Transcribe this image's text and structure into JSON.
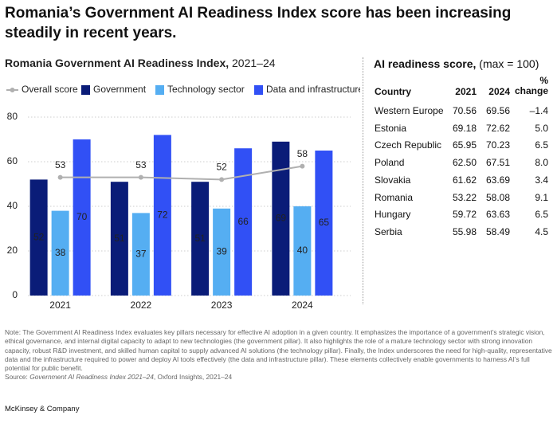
{
  "headline": "Romania’s Government AI Readiness Index score has been increasing steadily in recent years.",
  "chart_data": {
    "type": "bar",
    "title": "Romania Government AI Readiness Index,",
    "subtitle": "2021–24",
    "categories": [
      "2021",
      "2022",
      "2023",
      "2024"
    ],
    "series": [
      {
        "name": "Overall score",
        "type": "line",
        "color": "#b0b0b0",
        "values": [
          53,
          53,
          52,
          58
        ]
      },
      {
        "name": "Government",
        "color": "#0a1c78",
        "values": [
          52,
          51,
          51,
          69
        ]
      },
      {
        "name": "Technology sector",
        "color": "#55aef2",
        "values": [
          38,
          37,
          39,
          40
        ]
      },
      {
        "name": "Data and infrastructure",
        "color": "#3150f5",
        "values": [
          70,
          72,
          66,
          65
        ]
      }
    ],
    "ylim": [
      0,
      80
    ],
    "yticks": [
      0,
      20,
      40,
      60,
      80
    ],
    "grid": true
  },
  "table": {
    "title": "AI readiness score,",
    "subtitle": "(max = 100)",
    "columns": [
      "Country",
      "2021",
      "2024",
      "% change"
    ],
    "rows": [
      [
        "Western Europe",
        "70.56",
        "69.56",
        "–1.4"
      ],
      [
        "Estonia",
        "69.18",
        "72.62",
        "5.0"
      ],
      [
        "Czech Republic",
        "65.95",
        "70.23",
        "6.5"
      ],
      [
        "Poland",
        "62.50",
        "67.51",
        "8.0"
      ],
      [
        "Slovakia",
        "61.62",
        "63.69",
        "3.4"
      ],
      [
        "Romania",
        "53.22",
        "58.08",
        "9.1"
      ],
      [
        "Hungary",
        "59.72",
        "63.63",
        "6.5"
      ],
      [
        "Serbia",
        "55.98",
        "58.49",
        "4.5"
      ]
    ]
  },
  "note": "Note: The Government AI Readiness Index evaluates key pillars necessary for effective AI adoption in a given country. It emphasizes the importance of a government’s strategic vision, ethical governance, and internal digital capacity to adapt to new technologies (the government pillar). It also highlights the role of a mature technology sector with strong innovation capacity, robust R&D investment, and skilled human capital to supply advanced AI solutions (the technology pillar). Finally, the Index underscores the need for high-quality, representative data and the infrastructure required to power and deploy AI tools effectively (the data and infrastructure pillar). These elements collectively enable governments to harness AI’s full potential for public benefit.",
  "source": {
    "label": "Source:",
    "title": "Government AI Readiness Index 2021–24",
    "rest": ", Oxford Insights, 2021–24"
  },
  "footer": "McKinsey & Company"
}
